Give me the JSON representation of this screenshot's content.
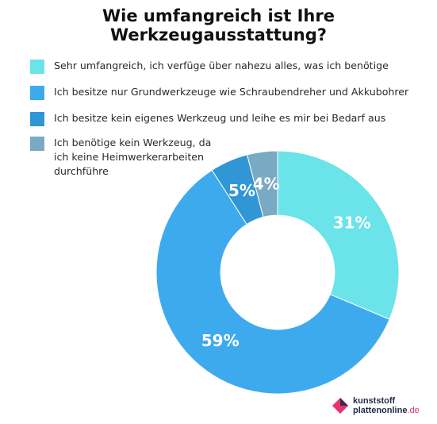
{
  "chart_data": {
    "type": "pie",
    "title_lines": [
      "Wie umfangreich ist Ihre",
      "Werkzeugausstattung?"
    ],
    "slices": [
      {
        "label": "Sehr umfangreich, ich verfüge über nahezu alles, was ich benötige",
        "value": 31,
        "value_label": "31%",
        "color": "#6ae3e9"
      },
      {
        "label": "Ich besitze nur Grundwerkzeuge wie Schraubendreher und Akkubohrer",
        "value": 59,
        "value_label": "59%",
        "color": "#3eaaee"
      },
      {
        "label": "Ich besitze kein eigenes Werkzeug und leihe es mir bei Bedarf aus",
        "value": 5,
        "value_label": "5%",
        "color": "#3196d6"
      },
      {
        "label": "Ich benötige kein Werkzeug, da ich keine Heimwerkerarbeiten durchführe",
        "value": 4,
        "value_label": "4%",
        "color": "#7aaac3"
      }
    ],
    "legend_position": "top-left",
    "inner_radius_ratio": 0.47
  },
  "logo": {
    "line1": "kunststoff",
    "line2": "plattenonline",
    "tld": ".de"
  }
}
